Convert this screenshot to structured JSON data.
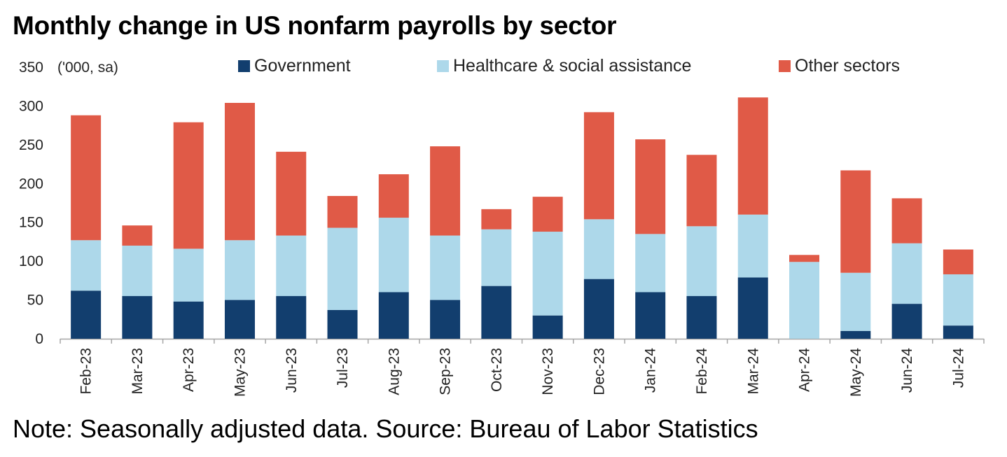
{
  "title": "Monthly change in US nonfarm payrolls by sector",
  "note": "Note: Seasonally adjusted data. Source: Bureau of Labor Statistics",
  "chart_data": {
    "type": "bar",
    "stacked": true,
    "unit_label": "('000, sa)",
    "ylim": [
      0,
      350
    ],
    "yticks": [
      0,
      50,
      100,
      150,
      200,
      250,
      300,
      350
    ],
    "grid": false,
    "legend_position": "top",
    "categories": [
      "Feb-23",
      "Mar-23",
      "Apr-23",
      "May-23",
      "Jun-23",
      "Jul-23",
      "Aug-23",
      "Sep-23",
      "Oct-23",
      "Nov-23",
      "Dec-23",
      "Jan-24",
      "Feb-24",
      "Mar-24",
      "Apr-24",
      "May-24",
      "Jun-24",
      "Jul-24"
    ],
    "series": [
      {
        "name": "Government",
        "color": "#123e6e",
        "values": [
          62,
          55,
          48,
          50,
          55,
          37,
          60,
          50,
          68,
          30,
          77,
          60,
          55,
          79,
          0,
          10,
          45,
          17
        ]
      },
      {
        "name": "Healthcare & social assistance",
        "color": "#add8ea",
        "values": [
          65,
          65,
          68,
          77,
          78,
          106,
          96,
          83,
          73,
          108,
          77,
          75,
          90,
          81,
          99,
          75,
          78,
          66
        ]
      },
      {
        "name": "Other sectors",
        "color": "#e05a47",
        "values": [
          161,
          26,
          163,
          177,
          108,
          41,
          56,
          115,
          26,
          45,
          138,
          122,
          92,
          151,
          9,
          132,
          58,
          32
        ]
      }
    ]
  }
}
